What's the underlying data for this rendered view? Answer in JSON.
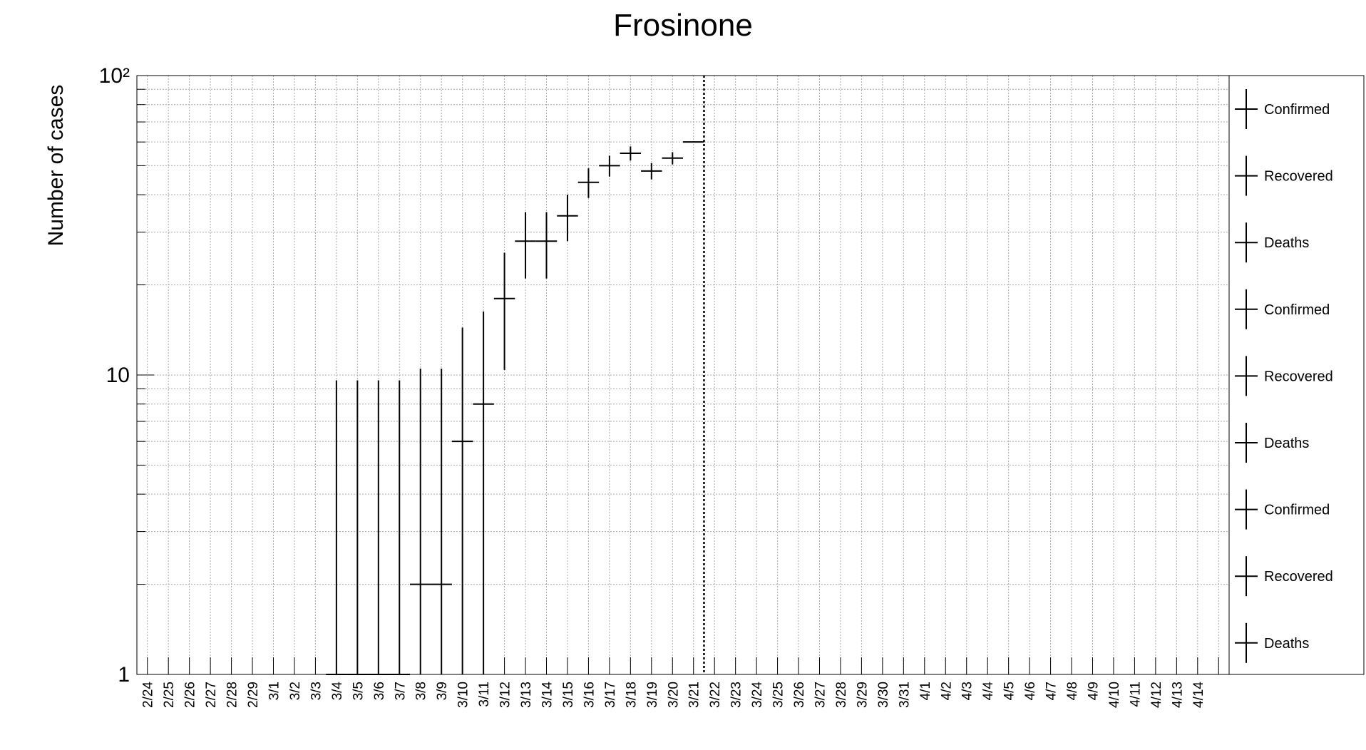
{
  "chart_data": {
    "type": "errorbar",
    "title": "Frosinone",
    "y_label": "Number of cases",
    "log_scale": true,
    "grid": true,
    "color": "#000000",
    "categories": [
      "2/24",
      "2/25",
      "2/26",
      "2/27",
      "2/28",
      "2/29",
      "3/1",
      "3/2",
      "3/3",
      "3/4",
      "3/5",
      "3/6",
      "3/7",
      "3/8",
      "3/9",
      "3/10",
      "3/11",
      "3/12",
      "3/13",
      "3/14",
      "3/15",
      "3/16",
      "3/17",
      "3/18",
      "3/19",
      "3/20",
      "3/21",
      "3/22",
      "3/23",
      "3/24",
      "3/25",
      "3/26",
      "3/27",
      "3/28",
      "3/29",
      "3/30",
      "3/31",
      "4/1",
      "4/2",
      "4/3",
      "4/4",
      "4/5",
      "4/6",
      "4/7",
      "4/8",
      "4/9",
      "4/10",
      "4/11",
      "4/12",
      "4/13",
      "4/14",
      null
    ],
    "values": [
      null,
      null,
      null,
      null,
      null,
      null,
      null,
      null,
      null,
      1,
      1,
      1,
      1,
      2,
      2,
      6,
      8,
      18,
      28,
      28,
      34,
      44,
      50,
      55,
      48,
      53,
      60,
      null,
      null,
      null,
      null,
      null,
      null,
      null,
      null,
      null,
      null,
      null,
      null,
      null,
      null,
      null,
      null,
      null,
      null,
      null,
      null,
      null,
      null,
      null,
      null,
      null
    ],
    "errors": [
      null,
      null,
      null,
      null,
      null,
      null,
      null,
      null,
      null,
      8.6,
      8.6,
      8.6,
      8.6,
      8.5,
      8.5,
      8.4,
      8.3,
      7.6,
      7,
      7,
      6,
      5,
      4,
      3,
      3,
      2.5,
      0,
      null,
      null,
      null,
      null,
      null,
      null,
      null,
      null,
      null,
      null,
      null,
      null,
      null,
      null,
      null,
      null,
      null,
      null,
      null,
      null,
      null,
      null,
      null,
      null,
      null
    ],
    "ylim": [
      1,
      100
    ],
    "yticks": [
      1,
      10,
      {
        "value": 100,
        "label": "10²"
      }
    ],
    "yminorticks": [
      2,
      3,
      4,
      5,
      6,
      7,
      8,
      9,
      20,
      30,
      40,
      50,
      60,
      70,
      80,
      90
    ],
    "legend": [
      "Confirmed",
      "Recovered",
      "Deaths",
      "Confirmed",
      "Recovered",
      "Deaths",
      "Confirmed",
      "Recovered",
      "Deaths"
    ]
  }
}
